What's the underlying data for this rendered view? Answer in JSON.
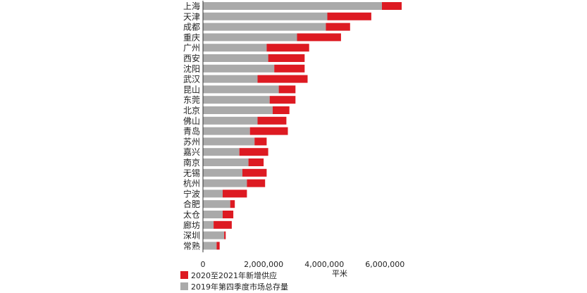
{
  "chart_data": {
    "type": "bar",
    "orientation": "horizontal",
    "stacked": true,
    "categories": [
      "上海",
      "天津",
      "成都",
      "重庆",
      "广州",
      "西安",
      "沈阳",
      "武汉",
      "昆山",
      "东莞",
      "北京",
      "佛山",
      "青岛",
      "苏州",
      "嘉兴",
      "南京",
      "无锡",
      "杭州",
      "宁波",
      "合肥",
      "太仓",
      "廊坊",
      "深圳",
      "常熟"
    ],
    "series": [
      {
        "name": "2019年第四季度市场总存量",
        "color": "#aaaaaa",
        "values": [
          5900000,
          4100000,
          4050000,
          3100000,
          2100000,
          2150000,
          2350000,
          1800000,
          2500000,
          2200000,
          2300000,
          1800000,
          1550000,
          1700000,
          1200000,
          1500000,
          1300000,
          1450000,
          650000,
          900000,
          650000,
          350000,
          700000,
          450000
        ]
      },
      {
        "name": "2020至2021年新增供应",
        "color": "#dd1a22",
        "values": [
          650000,
          1450000,
          800000,
          1450000,
          1400000,
          1200000,
          1000000,
          1650000,
          550000,
          850000,
          550000,
          950000,
          1250000,
          400000,
          950000,
          500000,
          800000,
          600000,
          800000,
          150000,
          350000,
          600000,
          50000,
          100000
        ]
      }
    ],
    "xlim": [
      0,
      6600000
    ],
    "xticks": [
      "0",
      "2,000,000",
      "4,000,000",
      "6,000,000"
    ],
    "xtick_values": [
      0,
      2000000,
      4000000,
      6000000
    ],
    "xlabel": "平米",
    "ylabel": "",
    "title": "",
    "grid": false,
    "legend_position": "bottom-left",
    "legend": [
      {
        "label": "2020至2021年新增供应",
        "color": "#dd1a22"
      },
      {
        "label": "2019年第四季度市场总存量",
        "color": "#aaaaaa"
      }
    ]
  }
}
